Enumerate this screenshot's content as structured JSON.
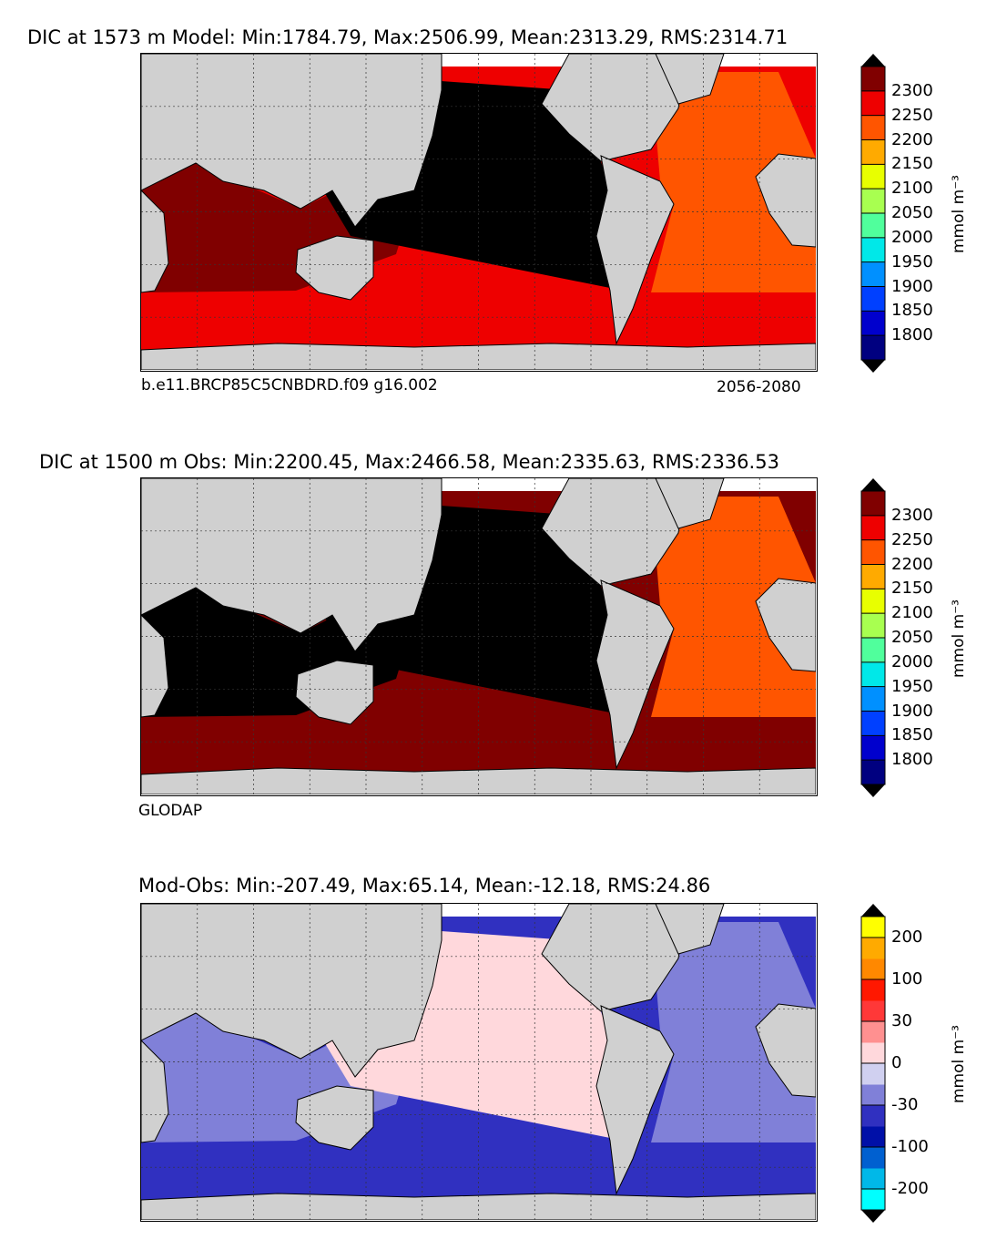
{
  "panels": [
    {
      "title": "DIC at 1573 m Model: Min:1784.79, Max:2506.99, Mean:2313.29, RMS:2314.71",
      "caption_left": "b.e11.BRCP85C5CNBDRD.f09 g16.002",
      "caption_right": "2056-2080",
      "colorbar": {
        "ticks": [
          "1800",
          "1850",
          "1900",
          "1950",
          "2000",
          "2050",
          "2100",
          "2150",
          "2200",
          "2250",
          "2300"
        ],
        "colors": [
          "#000080",
          "#0000cd",
          "#0040ff",
          "#0090ff",
          "#00e8e8",
          "#50ff9c",
          "#a8ff50",
          "#e8ff00",
          "#ffaa00",
          "#ff5500",
          "#ee0000",
          "#800000"
        ],
        "under_color": "#000000",
        "over_color": "#000000",
        "unit": "mmol m⁻³"
      },
      "map_fill": {
        "pacific": "#000000",
        "indian": "#800000",
        "southern": "#ee0000",
        "atlantic": "#ff5500"
      }
    },
    {
      "title": "DIC at 1500 m Obs: Min:2200.45, Max:2466.58, Mean:2335.63, RMS:2336.53",
      "caption_left": "GLODAP",
      "caption_right": "",
      "colorbar": {
        "ticks": [
          "1800",
          "1850",
          "1900",
          "1950",
          "2000",
          "2050",
          "2100",
          "2150",
          "2200",
          "2250",
          "2300"
        ],
        "colors": [
          "#000080",
          "#0000cd",
          "#0040ff",
          "#0090ff",
          "#00e8e8",
          "#50ff9c",
          "#a8ff50",
          "#e8ff00",
          "#ffaa00",
          "#ff5500",
          "#ee0000",
          "#800000"
        ],
        "under_color": "#000000",
        "over_color": "#000000",
        "unit": "mmol m⁻³"
      },
      "map_fill": {
        "pacific": "#000000",
        "indian": "#000000",
        "southern": "#800000",
        "atlantic": "#ff5500"
      }
    },
    {
      "title": "Mod-Obs: Min:-207.49, Max:65.14, Mean:-12.18, RMS:24.86",
      "caption_left": "",
      "caption_right": "",
      "colorbar": {
        "ticks": [
          "-200",
          "-100",
          "-30",
          "0",
          "30",
          "100",
          "200"
        ],
        "tick_positions": [
          1,
          3,
          5,
          7,
          9,
          11,
          13
        ],
        "colors": [
          "#00ffff",
          "#00b8e8",
          "#0060d0",
          "#0010a8",
          "#3030c0",
          "#8080d8",
          "#d0d0f0",
          "#ffd8dc",
          "#ff9090",
          "#ff3838",
          "#ff1800",
          "#ff8800",
          "#ffaa00",
          "#ffff00"
        ],
        "under_color": "#000000",
        "over_color": "#000000",
        "unit": "mmol m⁻³"
      },
      "map_fill": {
        "pacific": "#ffd8dc",
        "indian": "#8080d8",
        "southern": "#3030c0",
        "atlantic": "#8080d8"
      }
    }
  ]
}
